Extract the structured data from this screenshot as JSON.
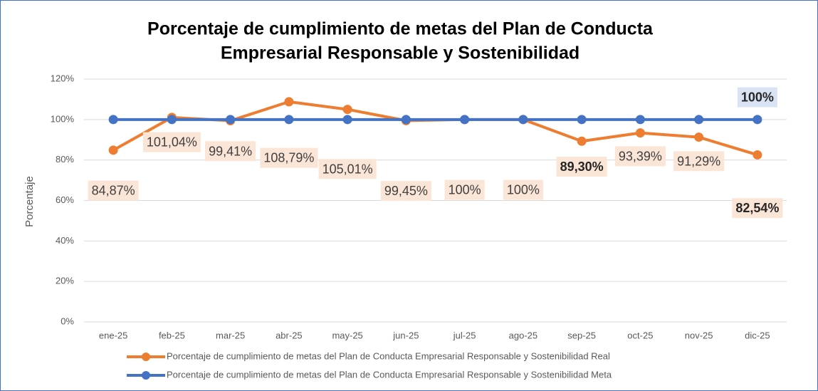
{
  "chart_data": {
    "type": "line",
    "title": [
      "Porcentaje de cumplimiento de metas del Plan de Conducta",
      "Empresarial Responsable y Sostenibilidad"
    ],
    "y_label": "Porcentaje",
    "categories": [
      "ene-25",
      "feb-25",
      "mar-25",
      "abr-25",
      "may-25",
      "jun-25",
      "jul-25",
      "ago-25",
      "sep-25",
      "oct-25",
      "nov-25",
      "dic-25"
    ],
    "series": [
      {
        "name": "Porcentaje de cumplimiento de metas del Plan de Conducta Empresarial Responsable y Sostenibilidad Real",
        "color": "#ed7d31",
        "values": [
          84.87,
          101.04,
          99.41,
          108.79,
          105.01,
          99.45,
          100,
          100,
          89.3,
          93.39,
          91.29,
          82.54
        ],
        "value_labels": [
          "84,87%",
          "101,04%",
          "99,41%",
          "108,79%",
          "105,01%",
          "99,45%",
          "100%",
          "100%",
          "89,30%",
          "93,39%",
          "91,29%",
          "82,54%"
        ]
      },
      {
        "name": "Porcentaje de cumplimiento de metas del Plan de Conducta Empresarial Responsable y Sostenibilidad Meta",
        "color": "#4472c4",
        "values": [
          100,
          100,
          100,
          100,
          100,
          100,
          100,
          100,
          100,
          100,
          100,
          100
        ],
        "value_labels": [
          null,
          null,
          null,
          null,
          null,
          null,
          null,
          null,
          null,
          null,
          null,
          "100%"
        ]
      }
    ],
    "ylim": [
      0,
      120
    ],
    "yticks": [
      {
        "value": 0,
        "label": "0%"
      },
      {
        "value": 20,
        "label": "20%"
      },
      {
        "value": 40,
        "label": "40%"
      },
      {
        "value": 60,
        "label": "60%"
      },
      {
        "value": 80,
        "label": "80%"
      },
      {
        "value": 100,
        "label": "100%"
      },
      {
        "value": 120,
        "label": "120%"
      }
    ],
    "grid": true
  }
}
